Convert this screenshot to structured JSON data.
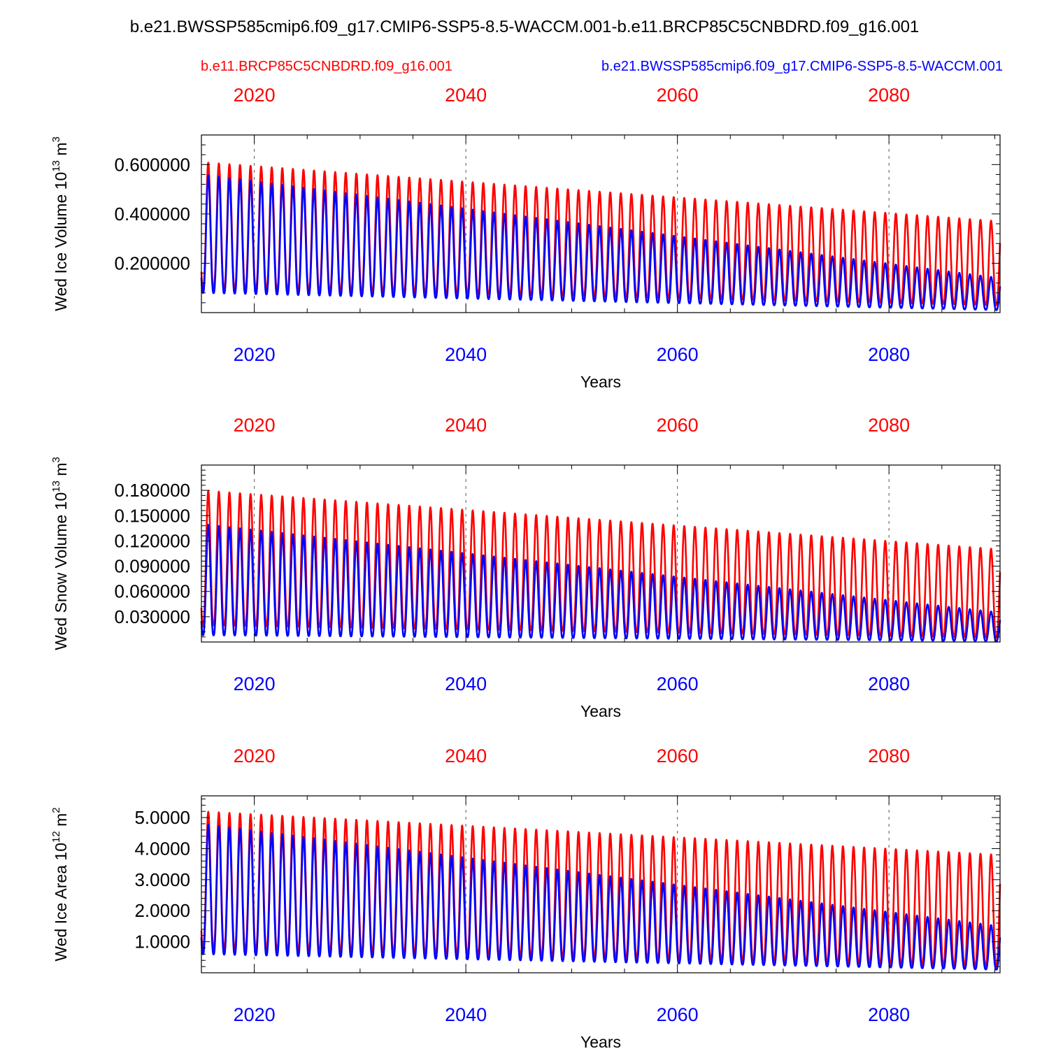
{
  "title": "b.e21.BWSSP585cmip6.f09_g17.CMIP6-SSP5-8.5-WACCM.001-b.e11.BRCP85C5CNBDRD.f09_g16.001",
  "legend": {
    "red_case": "b.e11.BRCP85C5CNBDRD.f09_g16.001",
    "blue_case": "b.e21.BWSSP585cmip6.f09_g17.CMIP6-SSP5-8.5-WACCM.001"
  },
  "colors": {
    "red": "#ff0000",
    "blue": "#0000ff",
    "axis": "#000000"
  },
  "chart_data": [
    {
      "type": "line",
      "ylabel_main": "Wed Ice Volume 10",
      "ylabel_exp": "13",
      "ylabel_unit": " m",
      "ylabel_unit_exp": "3",
      "xlabel": "Years",
      "xlim": [
        2015,
        2090.5
      ],
      "ylim": [
        0,
        0.72
      ],
      "yticks": [
        0.2,
        0.4,
        0.6
      ],
      "ytick_labels": [
        "0.200000",
        "0.400000",
        "0.600000"
      ],
      "xticks": [
        2020,
        2040,
        2060,
        2080
      ],
      "xtick_labels": [
        "2020",
        "2040",
        "2060",
        "2080"
      ],
      "series": [
        {
          "name": "b.e11.BRCP85C5CNBDRD.f09_g16.001",
          "color": "red",
          "max_start": 0.61,
          "max_end": 0.37,
          "min_start": 0.1,
          "min_end": 0.03,
          "min_floor": 0.01
        },
        {
          "name": "b.e21.BWSSP585cmip6.f09_g17.CMIP6-SSP5-8.5-WACCM.001",
          "color": "blue",
          "max_start": 0.56,
          "max_end": 0.14,
          "min_start": 0.08,
          "min_end": 0.01,
          "min_floor": 0.005
        }
      ]
    },
    {
      "type": "line",
      "ylabel_main": "Wed Snow Volume 10",
      "ylabel_exp": "13",
      "ylabel_unit": " m",
      "ylabel_unit_exp": "3",
      "xlabel": "Years",
      "xlim": [
        2015,
        2090.5
      ],
      "ylim": [
        0,
        0.21
      ],
      "yticks": [
        0.03,
        0.06,
        0.09,
        0.12,
        0.15,
        0.18
      ],
      "ytick_labels": [
        "0.030000",
        "0.060000",
        "0.090000",
        "0.120000",
        "0.150000",
        "0.180000"
      ],
      "xticks": [
        2020,
        2040,
        2060,
        2080
      ],
      "xtick_labels": [
        "2020",
        "2040",
        "2060",
        "2080"
      ],
      "series": [
        {
          "name": "b.e11.BRCP85C5CNBDRD.f09_g16.001",
          "color": "red",
          "max_start": 0.18,
          "max_end": 0.11,
          "min_start": 0.02,
          "min_end": 0.005,
          "min_floor": 0.002
        },
        {
          "name": "b.e21.BWSSP585cmip6.f09_g17.CMIP6-SSP5-8.5-WACCM.001",
          "color": "blue",
          "max_start": 0.14,
          "max_end": 0.035,
          "min_start": 0.008,
          "min_end": 0.001,
          "min_floor": 0.0005
        }
      ]
    },
    {
      "type": "line",
      "ylabel_main": "Wed Ice Area 10",
      "ylabel_exp": "12",
      "ylabel_unit": " m",
      "ylabel_unit_exp": "2",
      "xlabel": "Years",
      "xlim": [
        2015,
        2090.5
      ],
      "ylim": [
        0,
        5.7
      ],
      "yticks": [
        1,
        2,
        3,
        4,
        5
      ],
      "ytick_labels": [
        "1.0000",
        "2.0000",
        "3.0000",
        "4.0000",
        "5.0000"
      ],
      "xticks": [
        2020,
        2040,
        2060,
        2080
      ],
      "xtick_labels": [
        "2020",
        "2040",
        "2060",
        "2080"
      ],
      "series": [
        {
          "name": "b.e11.BRCP85C5CNBDRD.f09_g16.001",
          "color": "red",
          "max_start": 5.2,
          "max_end": 3.8,
          "min_start": 0.8,
          "min_end": 0.2,
          "min_floor": 0.05
        },
        {
          "name": "b.e21.BWSSP585cmip6.f09_g17.CMIP6-SSP5-8.5-WACCM.001",
          "color": "blue",
          "max_start": 4.8,
          "max_end": 1.5,
          "min_start": 0.6,
          "min_end": 0.1,
          "min_floor": 0.02
        }
      ]
    }
  ]
}
